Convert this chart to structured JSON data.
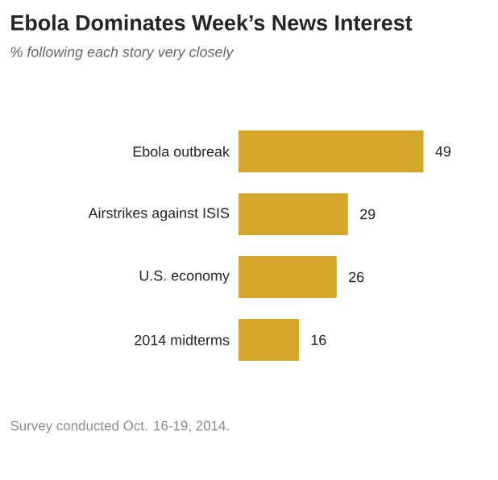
{
  "chart_data": {
    "type": "bar",
    "orientation": "horizontal",
    "title": "Ebola Dominates Week’s News Interest",
    "subtitle": "% following each story very closely",
    "categories": [
      "Ebola outbreak",
      "Airstrikes against ISIS",
      "U.S. economy",
      "2014 midterms"
    ],
    "values": [
      49,
      29,
      26,
      16
    ],
    "color": "#d4a72c",
    "data_labels": true,
    "annotations": [
      "Survey conducted Oct. 16-19, 2014."
    ]
  }
}
